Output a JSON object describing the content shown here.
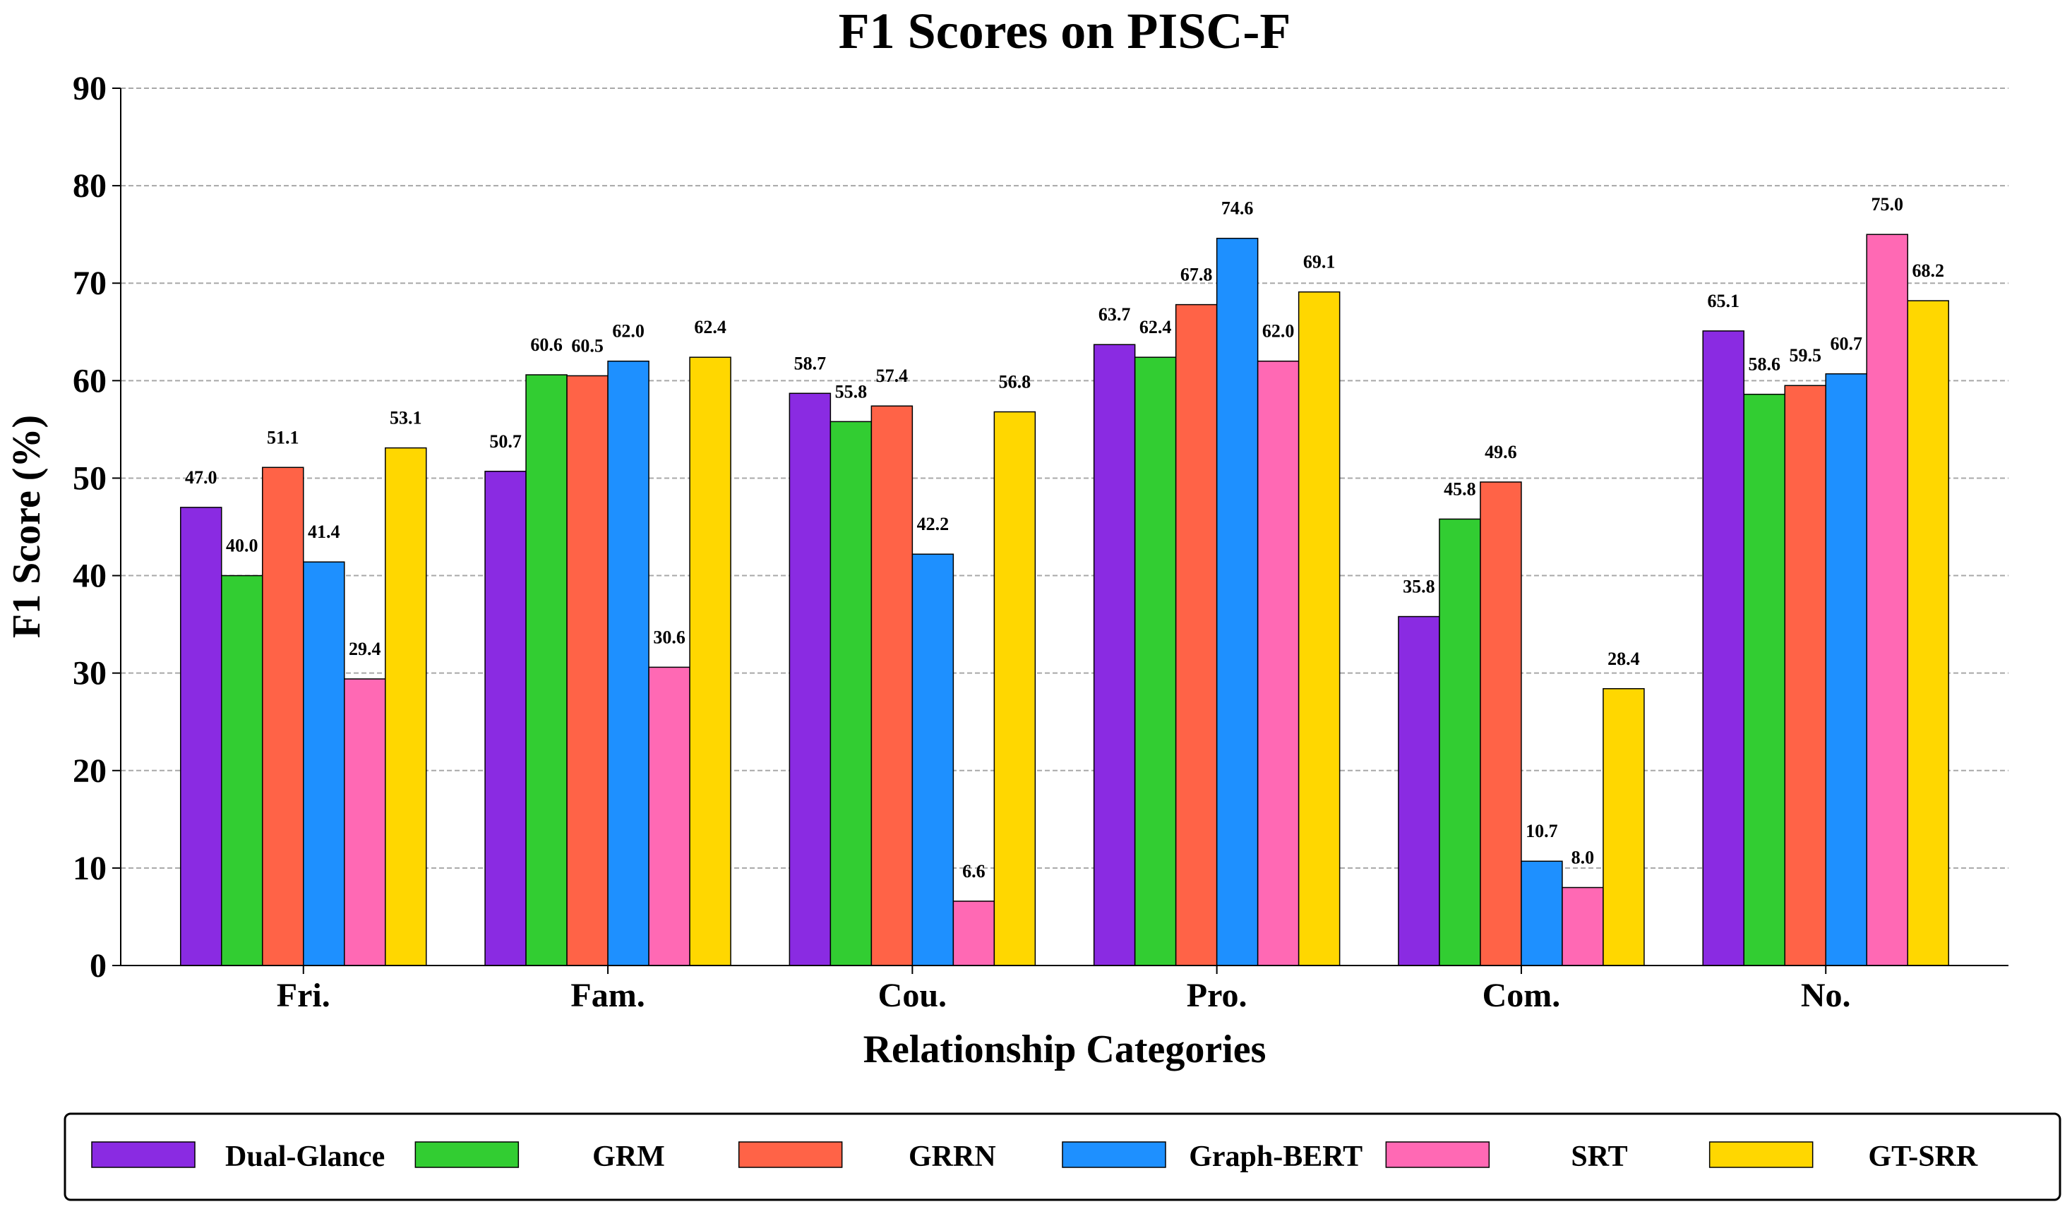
{
  "chart_data": {
    "type": "bar",
    "title": "F1 Scores on PISC-F",
    "xlabel": "Relationship Categories",
    "ylabel": "F1 Score (%)",
    "ylim": [
      0,
      90
    ],
    "yticks": [
      0,
      10,
      20,
      30,
      40,
      50,
      60,
      70,
      80,
      90
    ],
    "grid": true,
    "legend_position": "bottom",
    "categories": [
      "Fri.",
      "Fam.",
      "Cou.",
      "Pro.",
      "Com.",
      "No."
    ],
    "series": [
      {
        "name": "Dual-Glance",
        "color": "#8a2be2",
        "values": [
          47.0,
          50.7,
          58.7,
          63.7,
          35.8,
          65.1
        ]
      },
      {
        "name": "GRM",
        "color": "#32cd32",
        "values": [
          40.0,
          60.6,
          55.8,
          62.4,
          45.8,
          58.6
        ]
      },
      {
        "name": "GRRN",
        "color": "#ff6347",
        "values": [
          51.1,
          60.5,
          57.4,
          67.8,
          49.6,
          59.5
        ]
      },
      {
        "name": "Graph-BERT",
        "color": "#1e90ff",
        "values": [
          41.4,
          62.0,
          42.2,
          74.6,
          10.7,
          60.7
        ]
      },
      {
        "name": "SRT",
        "color": "#ff69b4",
        "values": [
          29.4,
          30.6,
          6.6,
          62.0,
          8.0,
          75.0
        ]
      },
      {
        "name": "GT-SRR",
        "color": "#ffd700",
        "values": [
          53.1,
          62.4,
          56.8,
          69.1,
          28.4,
          68.2
        ]
      }
    ]
  }
}
